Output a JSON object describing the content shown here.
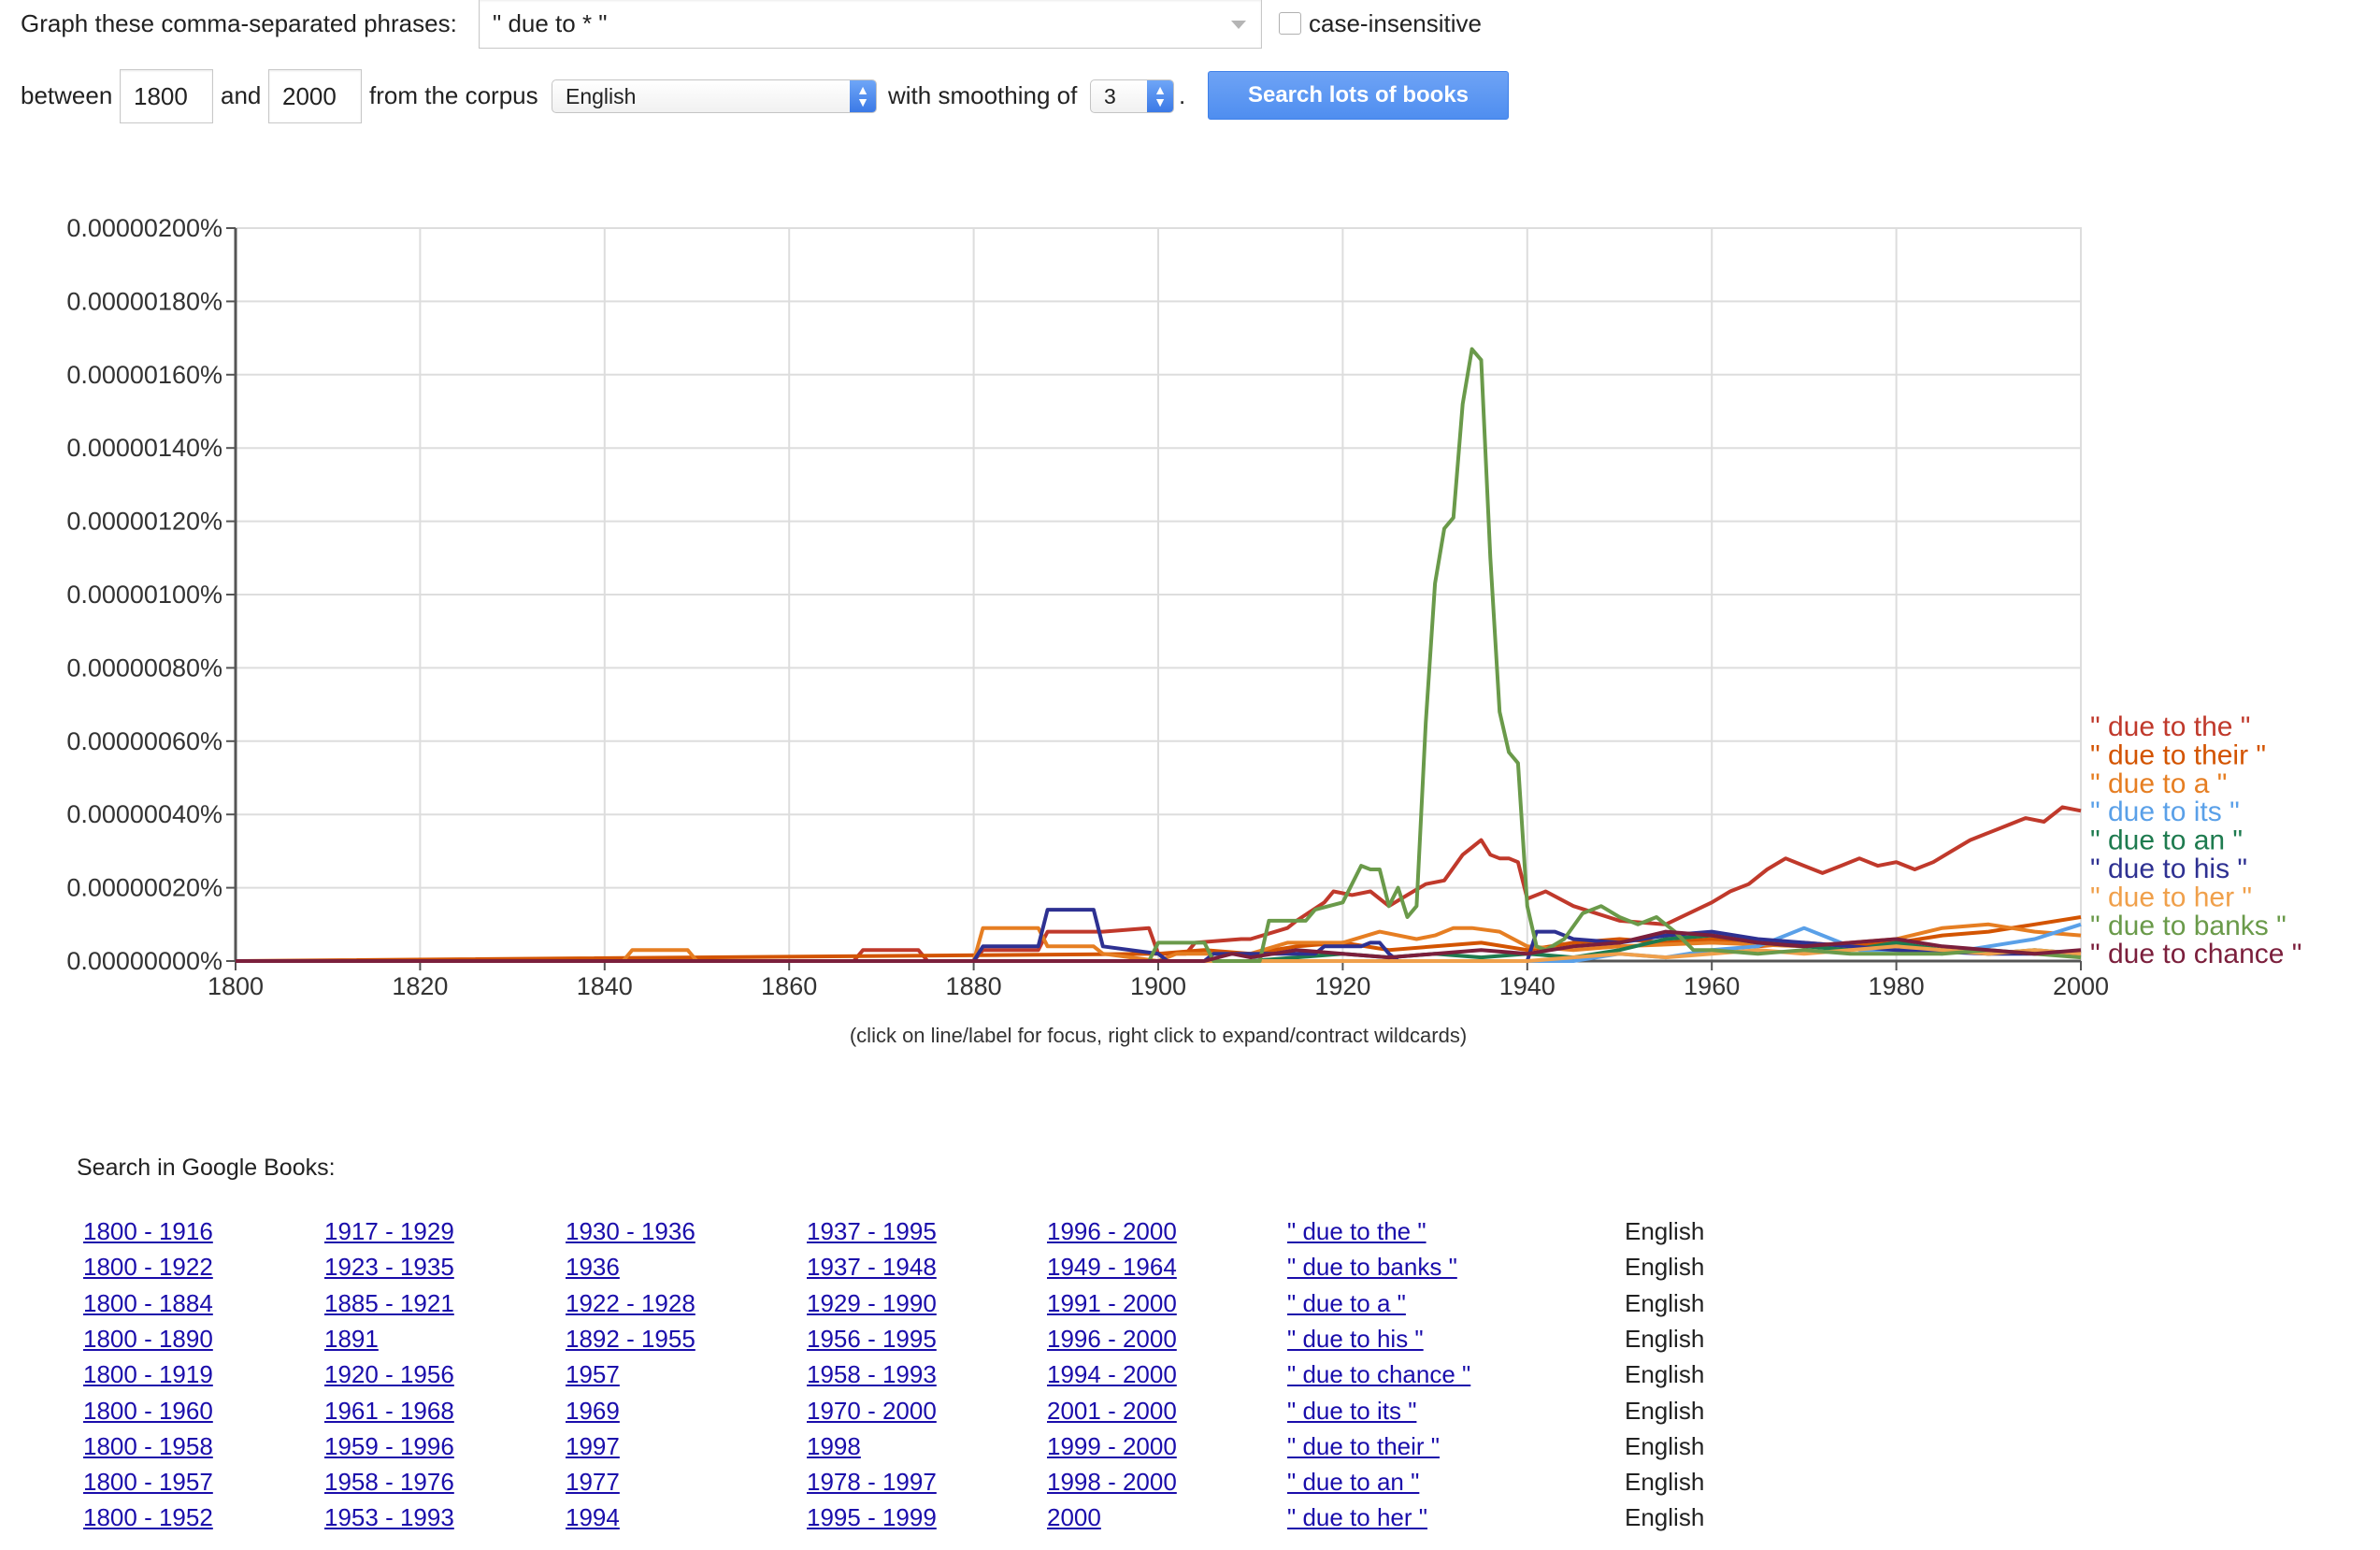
{
  "form": {
    "graph_label": "Graph these comma-separated phrases:",
    "query_value": "\" due to * \"",
    "case_insensitive_label": "case-insensitive",
    "between_label": "between",
    "start_year": "1800",
    "and_label": "and",
    "end_year": "2000",
    "corpus_label": "from the corpus",
    "corpus_value": "English",
    "smoothing_label": "with smoothing of",
    "smoothing_value": "3",
    "period": ".",
    "search_button": "Search lots of books"
  },
  "chart_note": "(click on line/label for focus, right click to expand/contract wildcards)",
  "chart_data": {
    "type": "line",
    "xlim": [
      1800,
      2000
    ],
    "ylim": [
      0,
      2e-06
    ],
    "grid": true,
    "x_ticks": [
      1800,
      1820,
      1840,
      1860,
      1880,
      1900,
      1920,
      1940,
      1960,
      1980,
      2000
    ],
    "y_ticks": [
      {
        "v": 0,
        "label": "0.00000000%"
      },
      {
        "v": 2e-07,
        "label": "0.00000020%"
      },
      {
        "v": 4e-07,
        "label": "0.00000040%"
      },
      {
        "v": 6e-07,
        "label": "0.00000060%"
      },
      {
        "v": 8e-07,
        "label": "0.00000080%"
      },
      {
        "v": 1e-06,
        "label": "0.00000100%"
      },
      {
        "v": 1.2e-06,
        "label": "0.00000120%"
      },
      {
        "v": 1.4e-06,
        "label": "0.00000140%"
      },
      {
        "v": 1.6e-06,
        "label": "0.00000160%"
      },
      {
        "v": 1.8e-06,
        "label": "0.00000180%"
      },
      {
        "v": 2e-06,
        "label": "0.00000200%"
      }
    ],
    "legend_placement": "right",
    "series": [
      {
        "name": "\" due to the \"",
        "color": "#c0392b",
        "x": [
          1800,
          1867,
          1868,
          1874,
          1875,
          1880,
          1881,
          1887,
          1888,
          1893,
          1894,
          1899,
          1900,
          1903,
          1904,
          1909,
          1910,
          1914,
          1915,
          1918,
          1919,
          1921,
          1923,
          1925,
          1927,
          1929,
          1931,
          1933,
          1934,
          1935,
          1936,
          1937,
          1938,
          1939,
          1940,
          1942,
          1945,
          1950,
          1955,
          1960,
          1962,
          1964,
          1966,
          1968,
          1970,
          1972,
          1974,
          1976,
          1978,
          1980,
          1982,
          1984,
          1986,
          1988,
          1990,
          1992,
          1994,
          1996,
          1998,
          2000
        ],
        "y": [
          0,
          0,
          3e-08,
          3e-08,
          0,
          0,
          3e-08,
          3e-08,
          8e-08,
          8e-08,
          8e-08,
          9e-08,
          2e-08,
          2e-08,
          5e-08,
          6e-08,
          6e-08,
          9e-08,
          1.1e-07,
          1.6e-07,
          1.9e-07,
          1.8e-07,
          1.9e-07,
          1.5e-07,
          1.8e-07,
          2.1e-07,
          2.2e-07,
          2.9e-07,
          3.1e-07,
          3.3e-07,
          2.9e-07,
          2.8e-07,
          2.8e-07,
          2.7e-07,
          1.7e-07,
          1.9e-07,
          1.5e-07,
          1.1e-07,
          1e-07,
          1.6e-07,
          1.9e-07,
          2.1e-07,
          2.5e-07,
          2.8e-07,
          2.6e-07,
          2.4e-07,
          2.6e-07,
          2.8e-07,
          2.6e-07,
          2.7e-07,
          2.5e-07,
          2.7e-07,
          3e-07,
          3.3e-07,
          3.5e-07,
          3.7e-07,
          3.9e-07,
          3.8e-07,
          4.2e-07,
          4.1e-07
        ]
      },
      {
        "name": "\" due to their \"",
        "color": "#d35400",
        "x": [
          1800,
          1900,
          1905,
          1910,
          1915,
          1920,
          1925,
          1930,
          1935,
          1940,
          1945,
          1950,
          1955,
          1960,
          1965,
          1970,
          1975,
          1980,
          1985,
          1990,
          1995,
          2000
        ],
        "y": [
          0,
          2e-08,
          3e-08,
          2e-08,
          4e-08,
          5e-08,
          3e-08,
          4e-08,
          5e-08,
          3e-08,
          5e-08,
          6e-08,
          5e-08,
          6e-08,
          4e-08,
          5e-08,
          4e-08,
          5e-08,
          7e-08,
          8e-08,
          1e-07,
          1.2e-07
        ]
      },
      {
        "name": "\" due to a \"",
        "color": "#e67e22",
        "x": [
          1800,
          1842,
          1843,
          1849,
          1850,
          1880,
          1881,
          1887,
          1888,
          1893,
          1894,
          1900,
          1902,
          1910,
          1914,
          1920,
          1924,
          1928,
          1930,
          1932,
          1934,
          1937,
          1940,
          1945,
          1950,
          1960,
          1970,
          1980,
          1985,
          1990,
          1995,
          2000
        ],
        "y": [
          0,
          0,
          3e-08,
          3e-08,
          0,
          0,
          9e-08,
          9e-08,
          4e-08,
          4e-08,
          2e-08,
          0,
          2e-08,
          2e-08,
          5e-08,
          5e-08,
          8e-08,
          6e-08,
          7e-08,
          9e-08,
          9e-08,
          8e-08,
          4e-08,
          3e-08,
          4e-08,
          5e-08,
          4e-08,
          6e-08,
          9e-08,
          1e-07,
          8e-08,
          7e-08
        ]
      },
      {
        "name": "\" due to its \"",
        "color": "#5aa0e8",
        "x": [
          1800,
          1945,
          1950,
          1955,
          1960,
          1965,
          1968,
          1970,
          1973,
          1976,
          1980,
          1985,
          1990,
          1995,
          2000
        ],
        "y": [
          0,
          0,
          2e-08,
          1e-08,
          3e-08,
          4e-08,
          7e-08,
          9e-08,
          6e-08,
          3e-08,
          3e-08,
          2e-08,
          4e-08,
          6e-08,
          1e-07
        ]
      },
      {
        "name": "\" due to an \"",
        "color": "#1e7b4f",
        "x": [
          1800,
          1910,
          1915,
          1920,
          1925,
          1930,
          1935,
          1940,
          1945,
          1950,
          1955,
          1960,
          1965,
          1970,
          1975,
          1980,
          1985,
          1990,
          1995,
          2000
        ],
        "y": [
          0,
          0,
          1e-08,
          2e-08,
          1e-08,
          2e-08,
          1e-08,
          2e-08,
          1e-08,
          3e-08,
          6e-08,
          7e-08,
          5e-08,
          4e-08,
          3e-08,
          5e-08,
          3e-08,
          2e-08,
          3e-08,
          2e-08
        ]
      },
      {
        "name": "\" due to his \"",
        "color": "#2e3192",
        "x": [
          1800,
          1880,
          1881,
          1887,
          1888,
          1893,
          1894,
          1900,
          1901,
          1905,
          1906,
          1910,
          1912,
          1917,
          1918,
          1920,
          1922,
          1923,
          1924,
          1925,
          1926,
          1940,
          1941,
          1943,
          1945,
          1950,
          1955,
          1960,
          1965,
          1970,
          1975,
          1980,
          1990,
          2000
        ],
        "y": [
          0,
          0,
          4e-08,
          4e-08,
          1.4e-07,
          1.4e-07,
          4e-08,
          2e-08,
          0,
          0,
          2e-08,
          2e-08,
          2e-08,
          2e-08,
          4e-08,
          4e-08,
          4e-08,
          5e-08,
          5e-08,
          2e-08,
          0,
          0,
          8e-08,
          8e-08,
          6e-08,
          5e-08,
          7e-08,
          8e-08,
          6e-08,
          5e-08,
          4e-08,
          3e-08,
          2e-08,
          2e-08
        ]
      },
      {
        "name": "\" due to her \"",
        "color": "#f0a04b",
        "x": [
          1800,
          1940,
          1945,
          1950,
          1955,
          1960,
          1965,
          1970,
          1975,
          1980,
          1985,
          1990,
          1995,
          2000
        ],
        "y": [
          0,
          0,
          1e-08,
          2e-08,
          1e-08,
          2e-08,
          3e-08,
          2e-08,
          3e-08,
          4e-08,
          3e-08,
          2e-08,
          3e-08,
          2e-08
        ]
      },
      {
        "name": "\" due to banks \"",
        "color": "#6a9a4a",
        "x": [
          1800,
          1899,
          1900,
          1903,
          1905,
          1906,
          1911,
          1912,
          1916,
          1917,
          1920,
          1922,
          1923,
          1924,
          1925,
          1926,
          1927,
          1928,
          1929,
          1930,
          1931,
          1932,
          1933,
          1934,
          1935,
          1936,
          1937,
          1938,
          1939,
          1940,
          1941,
          1942,
          1944,
          1946,
          1948,
          1950,
          1952,
          1954,
          1956,
          1958,
          1960,
          1965,
          1970,
          1975,
          1980,
          1985,
          1990,
          1995,
          2000
        ],
        "y": [
          0,
          0,
          5e-08,
          5e-08,
          5e-08,
          0,
          0,
          1.1e-07,
          1.1e-07,
          1.4e-07,
          1.6e-07,
          2.6e-07,
          2.5e-07,
          2.5e-07,
          1.5e-07,
          2e-07,
          1.2e-07,
          1.5e-07,
          6.5e-07,
          1.03e-06,
          1.18e-06,
          1.21e-06,
          1.52e-06,
          1.67e-06,
          1.64e-06,
          1.1e-06,
          6.8e-07,
          5.7e-07,
          5.4e-07,
          1.5e-07,
          4e-08,
          3e-08,
          6e-08,
          1.3e-07,
          1.5e-07,
          1.2e-07,
          1e-07,
          1.2e-07,
          8e-08,
          3e-08,
          3e-08,
          2e-08,
          3e-08,
          2e-08,
          2e-08,
          2e-08,
          3e-08,
          2e-08,
          1e-08
        ]
      },
      {
        "name": "\" due to chance \"",
        "color": "#7b1f3c",
        "x": [
          1800,
          1905,
          1908,
          1910,
          1915,
          1920,
          1925,
          1930,
          1935,
          1940,
          1945,
          1950,
          1955,
          1960,
          1965,
          1970,
          1975,
          1980,
          1985,
          1990,
          1995,
          2000
        ],
        "y": [
          0,
          0,
          2e-08,
          1e-08,
          3e-08,
          2e-08,
          1e-08,
          2e-08,
          3e-08,
          2e-08,
          4e-08,
          5e-08,
          8e-08,
          7e-08,
          5e-08,
          4e-08,
          5e-08,
          6e-08,
          4e-08,
          3e-08,
          2e-08,
          3e-08
        ]
      }
    ]
  },
  "search_in_books": {
    "heading": "Search in Google Books:",
    "columns": [
      [
        "1800 - 1916",
        "1800 - 1922",
        "1800 - 1884",
        "1800 - 1890",
        "1800 - 1919",
        "1800 - 1960",
        "1800 - 1958",
        "1800 - 1957",
        "1800 - 1952"
      ],
      [
        "1917 - 1929",
        "1923 - 1935",
        "1885 - 1921",
        "1891",
        "1920 - 1956",
        "1961 - 1968",
        "1959 - 1996",
        "1958 - 1976",
        "1953 - 1993"
      ],
      [
        "1930 - 1936",
        "1936",
        "1922 - 1928",
        "1892 - 1955",
        "1957",
        "1969",
        "1997",
        "1977",
        "1994"
      ],
      [
        "1937 - 1995",
        "1937 - 1948",
        "1929 - 1990",
        "1956 - 1995",
        "1958 - 1993",
        "1970 - 2000",
        "1998",
        "1978 - 1997",
        "1995 - 1999"
      ],
      [
        "1996 - 2000",
        "1949 - 1964",
        "1991 - 2000",
        "1996 - 2000",
        "1994 - 2000",
        "2001 - 2000",
        "1999 - 2000",
        "1998 - 2000",
        "2000"
      ],
      [
        "\" due to the \"",
        "\" due to banks \"",
        "\" due to a \"",
        "\" due to his \"",
        "\" due to chance \"",
        "\" due to its \"",
        "\" due to their \"",
        "\" due to an \"",
        "\" due to her \""
      ],
      [
        "English",
        "English",
        "English",
        "English",
        "English",
        "English",
        "English",
        "English",
        "English"
      ]
    ]
  },
  "colors": {
    "link": "#1a0dab",
    "button": "#4f8ef0",
    "grid": "#dddddd"
  }
}
